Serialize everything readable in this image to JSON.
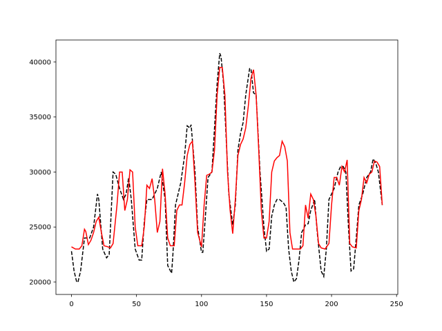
{
  "chart_data": {
    "type": "line",
    "xlim": [
      -11.95,
      250.95
    ],
    "ylim": [
      18870,
      42000
    ],
    "xticks": [
      0,
      50,
      100,
      150,
      200,
      250
    ],
    "yticks": [
      20000,
      25000,
      30000,
      35000,
      40000
    ],
    "series": [
      {
        "color": "#000000",
        "dash": true,
        "x": [
          0,
          2,
          4,
          5,
          7,
          10,
          14,
          17,
          20,
          21,
          24,
          27,
          29,
          32,
          34,
          37,
          40,
          42,
          44,
          46,
          49,
          52,
          54,
          56,
          58,
          62,
          66,
          69,
          72,
          74,
          77,
          78,
          80,
          84,
          87,
          89,
          91,
          92,
          95,
          97,
          100,
          101,
          103,
          105,
          108,
          110,
          112,
          114,
          115,
          117,
          119,
          121,
          124,
          126,
          128,
          130,
          132,
          134,
          137,
          138,
          140,
          142,
          145,
          148,
          150,
          152,
          154,
          156,
          158,
          160,
          163,
          165,
          167,
          169,
          171,
          173,
          175,
          177,
          180,
          182,
          184,
          187,
          189,
          192,
          194,
          196,
          198,
          200,
          202,
          205,
          207,
          209,
          211,
          213,
          215,
          217,
          219,
          221,
          224,
          227,
          230,
          232,
          234,
          236,
          238,
          239
        ],
        "values": [
          22800,
          21000,
          20000,
          20000,
          21000,
          24000,
          24000,
          25000,
          28000,
          27500,
          23000,
          22200,
          22500,
          30000,
          29800,
          28500,
          27500,
          28000,
          29500,
          27500,
          23000,
          22000,
          22000,
          25500,
          27500,
          27500,
          28500,
          30000,
          27500,
          21500,
          20800,
          22500,
          27000,
          29000,
          31500,
          34200,
          34000,
          34300,
          30000,
          25000,
          22700,
          22700,
          26000,
          29500,
          30000,
          34000,
          38000,
          40800,
          40500,
          38000,
          33000,
          28000,
          25200,
          27000,
          32000,
          33500,
          34500,
          37000,
          39400,
          39400,
          37200,
          37000,
          30000,
          25000,
          22800,
          23000,
          26000,
          27000,
          27500,
          27500,
          27200,
          26800,
          23000,
          21000,
          20000,
          20300,
          22000,
          24500,
          25200,
          25300,
          26500,
          27500,
          24500,
          21000,
          20500,
          23000,
          27500,
          28000,
          28500,
          30000,
          30500,
          30500,
          30000,
          25000,
          21000,
          21200,
          24000,
          27000,
          28000,
          29500,
          30000,
          31200,
          30800,
          30000,
          28000,
          27000
        ]
      },
      {
        "color": "#ff0000",
        "dash": false,
        "x": [
          0,
          3,
          6,
          8,
          10,
          11,
          13,
          15,
          17,
          19,
          21,
          23,
          25,
          28,
          30,
          32,
          35,
          37,
          39,
          41,
          43,
          45,
          47,
          49,
          51,
          54,
          56,
          58,
          60,
          62,
          64,
          66,
          68,
          70,
          72,
          74,
          76,
          79,
          81,
          83,
          85,
          87,
          89,
          91,
          93,
          95,
          97,
          100,
          102,
          104,
          106,
          108,
          110,
          112,
          114,
          116,
          118,
          120,
          122,
          124,
          126,
          128,
          130,
          132,
          134,
          136,
          138,
          140,
          142,
          144,
          146,
          148,
          150,
          152,
          154,
          156,
          158,
          160,
          162,
          164,
          166,
          168,
          170,
          173,
          176,
          178,
          180,
          182,
          184,
          186,
          188,
          190,
          192,
          195,
          198,
          200,
          202,
          204,
          206,
          208,
          210,
          212,
          214,
          216,
          219,
          221,
          223,
          225,
          227,
          229,
          231,
          233,
          235,
          237,
          239
        ],
        "values": [
          23200,
          23000,
          23000,
          23300,
          24800,
          24600,
          23400,
          23800,
          24500,
          25500,
          25900,
          24500,
          23300,
          23200,
          23100,
          23500,
          27000,
          30000,
          30000,
          26500,
          27500,
          30200,
          30000,
          25000,
          23300,
          23300,
          25000,
          28800,
          28500,
          29400,
          27500,
          24500,
          25500,
          30300,
          28000,
          24000,
          23300,
          23300,
          26500,
          27000,
          27000,
          29000,
          31500,
          32500,
          32800,
          29000,
          24500,
          23200,
          27000,
          29700,
          29800,
          30000,
          32000,
          37000,
          39500,
          39500,
          37000,
          30000,
          26500,
          24400,
          27500,
          31500,
          32500,
          33000,
          34000,
          36000,
          38500,
          39300,
          37000,
          32000,
          26500,
          24000,
          24000,
          25500,
          30000,
          31000,
          31300,
          31500,
          32800,
          32300,
          31000,
          24500,
          23000,
          23000,
          23000,
          23300,
          27000,
          25800,
          28000,
          27500,
          26000,
          23500,
          23100,
          23000,
          23500,
          27000,
          29500,
          29500,
          28800,
          30500,
          30000,
          31100,
          23500,
          23200,
          23100,
          26500,
          27500,
          29500,
          29000,
          29800,
          30000,
          31000,
          30900,
          30500,
          27000
        ]
      }
    ]
  }
}
